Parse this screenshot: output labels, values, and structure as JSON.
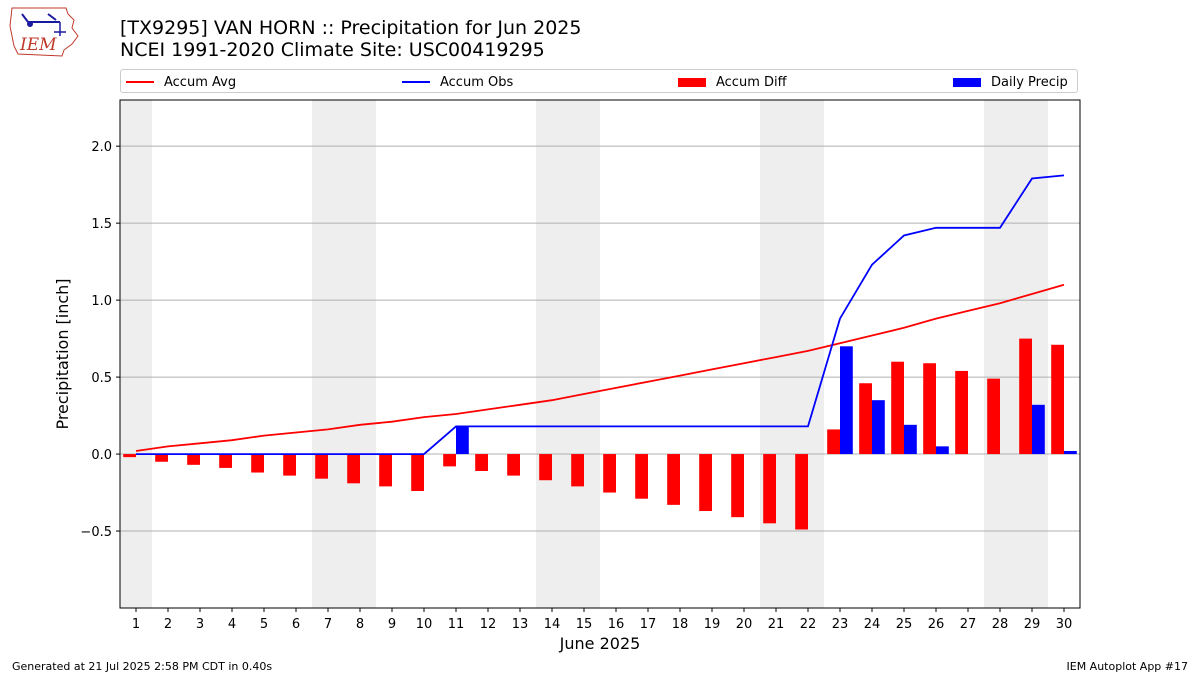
{
  "header": {
    "title_line1": "[TX9295] VAN HORN :: Precipitation for Jun 2025",
    "title_line2": "NCEI 1991-2020 Climate Site: USC00419295",
    "logo_text": "IEM"
  },
  "footer": {
    "left": "Generated at 21 Jul 2025 2:58 PM CDT in 0.40s",
    "right": "IEM Autoplot App #17"
  },
  "legend": [
    {
      "label": "Accum Avg",
      "kind": "line",
      "color": "#ff0000"
    },
    {
      "label": "Accum Obs",
      "kind": "line",
      "color": "#0000ff"
    },
    {
      "label": "Accum Diff",
      "kind": "box",
      "color": "#ff0000"
    },
    {
      "label": "Daily Precip",
      "kind": "box",
      "color": "#0000ff"
    }
  ],
  "chart_data": {
    "type": "bar",
    "xlabel": "June 2025",
    "ylabel": "Precipitation [inch]",
    "ylim": [
      -1.0,
      2.3
    ],
    "yticks": [
      -0.5,
      0.0,
      0.5,
      1.0,
      1.5,
      2.0
    ],
    "ytick_labels": [
      "−0.5",
      "0.0",
      "0.5",
      "1.0",
      "1.5",
      "2.0"
    ],
    "grid": "horizontal",
    "weekend_shading_days": [
      1,
      7,
      8,
      14,
      15,
      21,
      22,
      28,
      29
    ],
    "days": [
      1,
      2,
      3,
      4,
      5,
      6,
      7,
      8,
      9,
      10,
      11,
      12,
      13,
      14,
      15,
      16,
      17,
      18,
      19,
      20,
      21,
      22,
      23,
      24,
      25,
      26,
      27,
      28,
      29,
      30
    ],
    "series": [
      {
        "name": "Accum Avg",
        "kind": "line",
        "color": "#ff0000",
        "values": [
          0.02,
          0.05,
          0.07,
          0.09,
          0.12,
          0.14,
          0.16,
          0.19,
          0.21,
          0.24,
          0.26,
          0.29,
          0.32,
          0.35,
          0.39,
          0.43,
          0.47,
          0.51,
          0.55,
          0.59,
          0.63,
          0.67,
          0.72,
          0.77,
          0.82,
          0.88,
          0.93,
          0.98,
          1.04,
          1.1
        ]
      },
      {
        "name": "Accum Obs",
        "kind": "line",
        "color": "#0000ff",
        "values": [
          0,
          0,
          0,
          0,
          0,
          0,
          0,
          0,
          0,
          0,
          0.18,
          0.18,
          0.18,
          0.18,
          0.18,
          0.18,
          0.18,
          0.18,
          0.18,
          0.18,
          0.18,
          0.18,
          0.88,
          1.23,
          1.42,
          1.47,
          1.47,
          1.47,
          1.79,
          1.81
        ]
      },
      {
        "name": "Accum Diff",
        "kind": "bar",
        "color": "#ff0000",
        "values": [
          -0.02,
          -0.05,
          -0.07,
          -0.09,
          -0.12,
          -0.14,
          -0.16,
          -0.19,
          -0.21,
          -0.24,
          -0.08,
          -0.11,
          -0.14,
          -0.17,
          -0.21,
          -0.25,
          -0.29,
          -0.33,
          -0.37,
          -0.41,
          -0.45,
          -0.49,
          0.16,
          0.46,
          0.6,
          0.59,
          0.54,
          0.49,
          0.75,
          0.71
        ]
      },
      {
        "name": "Daily Precip",
        "kind": "bar",
        "color": "#0000ff",
        "values": [
          0,
          0,
          0,
          0,
          0,
          0,
          0,
          0,
          0,
          0,
          0.18,
          0,
          0,
          0,
          0,
          0,
          0,
          0,
          0,
          0,
          0,
          0,
          0.7,
          0.35,
          0.19,
          0.05,
          0,
          0,
          0.32,
          0.02
        ]
      }
    ]
  }
}
